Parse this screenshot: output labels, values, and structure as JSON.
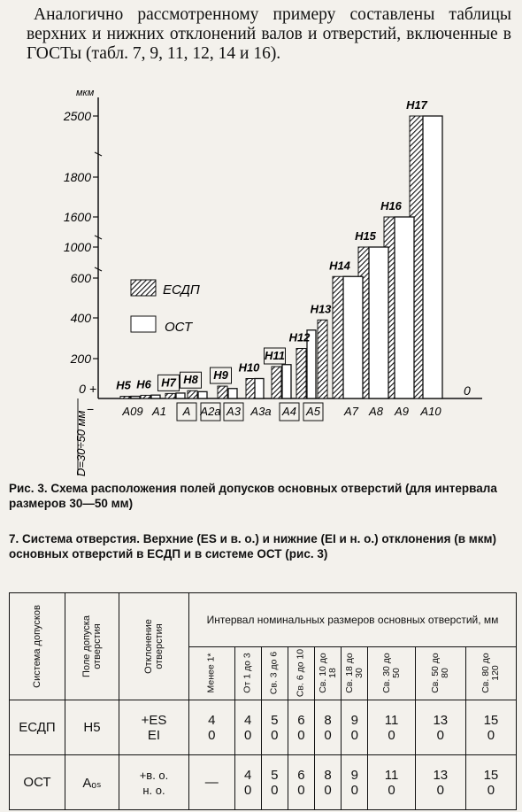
{
  "intro": "Аналогично рассмотренному примеру составлены таблицы верхних и нижних отклонений валов и отверстий, включенные в ГОСТы (табл. 7, 9, 11, 12, 14 и 16).",
  "chart_data": {
    "type": "bar",
    "unit_label": "мкм",
    "y_ticks": [
      "2500",
      "1800",
      "1600",
      "1000",
      "600",
      "400",
      "200",
      "0"
    ],
    "zero_label": "0 +",
    "minus_label": "−",
    "right_zero": "0",
    "d_label": "D=30÷50 мм",
    "legend": [
      {
        "name": "ЕСДП",
        "pattern": "hatched"
      },
      {
        "name": "ОСТ",
        "pattern": "white"
      }
    ],
    "esdp_series": [
      {
        "label": "H5",
        "value": 11
      },
      {
        "label": "H6",
        "value": 16
      },
      {
        "label": "H7",
        "value": 25
      },
      {
        "label": "H8",
        "value": 39
      },
      {
        "label": "H9",
        "value": 62
      },
      {
        "label": "H10",
        "value": 100
      },
      {
        "label": "H11",
        "value": 160
      },
      {
        "label": "H12",
        "value": 250
      },
      {
        "label": "H13",
        "value": 390
      },
      {
        "label": "H14",
        "value": 620
      },
      {
        "label": "H15",
        "value": 1000
      },
      {
        "label": "H16",
        "value": 1600
      },
      {
        "label": "H17",
        "value": 2500
      }
    ],
    "ost_series": [
      {
        "label": "A09",
        "value": 11
      },
      {
        "label": "A1",
        "value": 17
      },
      {
        "label": "A",
        "value": 27
      },
      {
        "label": "A2a",
        "value": 34
      },
      {
        "label": "A3",
        "value": 50
      },
      {
        "label": "A3a",
        "value": 100
      },
      {
        "label": "A4",
        "value": 170
      },
      {
        "label": "A5",
        "value": 340
      },
      {
        "label": "A7",
        "value": 620
      },
      {
        "label": "A8",
        "value": 1000
      },
      {
        "label": "A9",
        "value": 1600
      },
      {
        "label": "A10",
        "value": 2500
      }
    ]
  },
  "caption": "Рис. 3. Схема расположения полей допусков основных отверстий (для интервала размеров 30—50 мм)",
  "table_title": "7. Система отверстия. Верхние (ES и в. о.) и нижние (EI и н. о.) отклонения (в мкм) основных отверстий в ЕСДП и в системе ОСТ (рис. 3)",
  "table": {
    "col_system": "Система допусков",
    "col_field": "Поле допуска отверстия",
    "col_dev": "Отклонение отверстия",
    "interval_header": "Интервал номинальных размеров основных отверстий, мм",
    "intervals": [
      "Менее 1*",
      "От 1 до 3",
      "Св. 3 до 6",
      "Св. 6 до 10",
      "Св. 10 до 18",
      "Св. 18 до 30",
      "Св. 30 до 50",
      "Св. 50 до 80",
      "Св. 80 до 120"
    ],
    "rows": [
      {
        "system": "ЕСДП",
        "field": "H5",
        "dev_top": "+ES",
        "dev_bottom": "EI",
        "vals": [
          [
            "4",
            "0"
          ],
          [
            "4",
            "0"
          ],
          [
            "5",
            "0"
          ],
          [
            "6",
            "0"
          ],
          [
            "8",
            "0"
          ],
          [
            "9",
            "0"
          ],
          [
            "11",
            "0"
          ],
          [
            "13",
            "0"
          ],
          [
            "15",
            "0"
          ]
        ]
      },
      {
        "system": "ОСТ",
        "field": "Aₒₛ",
        "dev_top": "+в. о.",
        "dev_bottom": "н. о.",
        "first": "—",
        "vals": [
          [
            "4",
            "0"
          ],
          [
            "5",
            "0"
          ],
          [
            "6",
            "0"
          ],
          [
            "8",
            "0"
          ],
          [
            "9",
            "0"
          ],
          [
            "11",
            "0"
          ],
          [
            "13",
            "0"
          ],
          [
            "15",
            "0"
          ]
        ]
      }
    ]
  }
}
